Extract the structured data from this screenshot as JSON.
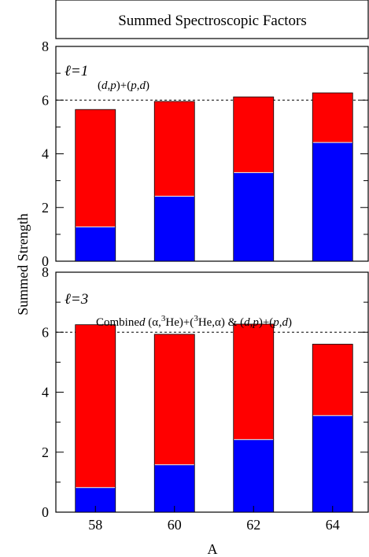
{
  "colors": {
    "upper": "#ff0000",
    "lower": "#0000ff",
    "frame": "#000000"
  },
  "figure_title": "Summed Spectroscopic Factors",
  "shared_ylabel": "Summed Strength",
  "shared_xlabel": "A",
  "chart_data": [
    {
      "type": "bar",
      "stacked": true,
      "panel_label": "ℓ=1",
      "annotation": "(d,p)+(p,d)",
      "categories": [
        "58",
        "60",
        "62",
        "64"
      ],
      "series": [
        {
          "values": [
            1.28,
            2.42,
            3.3,
            4.42
          ]
        },
        {
          "values": [
            4.37,
            3.53,
            2.82,
            1.85
          ]
        }
      ],
      "totals": [
        5.65,
        5.95,
        6.12,
        6.27
      ],
      "reference_line": 6,
      "ylim": [
        0,
        8
      ],
      "yticks": [
        "0",
        "2",
        "4",
        "6",
        "8"
      ],
      "grid": false,
      "xlabel": "",
      "ylabel": ""
    },
    {
      "type": "bar",
      "stacked": true,
      "panel_label": "ℓ=3",
      "annotation": "Combined (α,3He)+(3He,α) & (d,p)+(p,d)",
      "categories": [
        "58",
        "60",
        "62",
        "64"
      ],
      "series": [
        {
          "values": [
            0.82,
            1.58,
            2.42,
            3.22
          ]
        },
        {
          "values": [
            5.43,
            4.35,
            3.85,
            2.38
          ]
        }
      ],
      "totals": [
        6.25,
        5.93,
        6.27,
        5.6
      ],
      "reference_line": 6,
      "ylim": [
        0,
        8
      ],
      "yticks": [
        "0",
        "2",
        "4",
        "6",
        "8"
      ],
      "grid": false,
      "xlabel": "A",
      "ylabel": "Summed Strength"
    }
  ]
}
